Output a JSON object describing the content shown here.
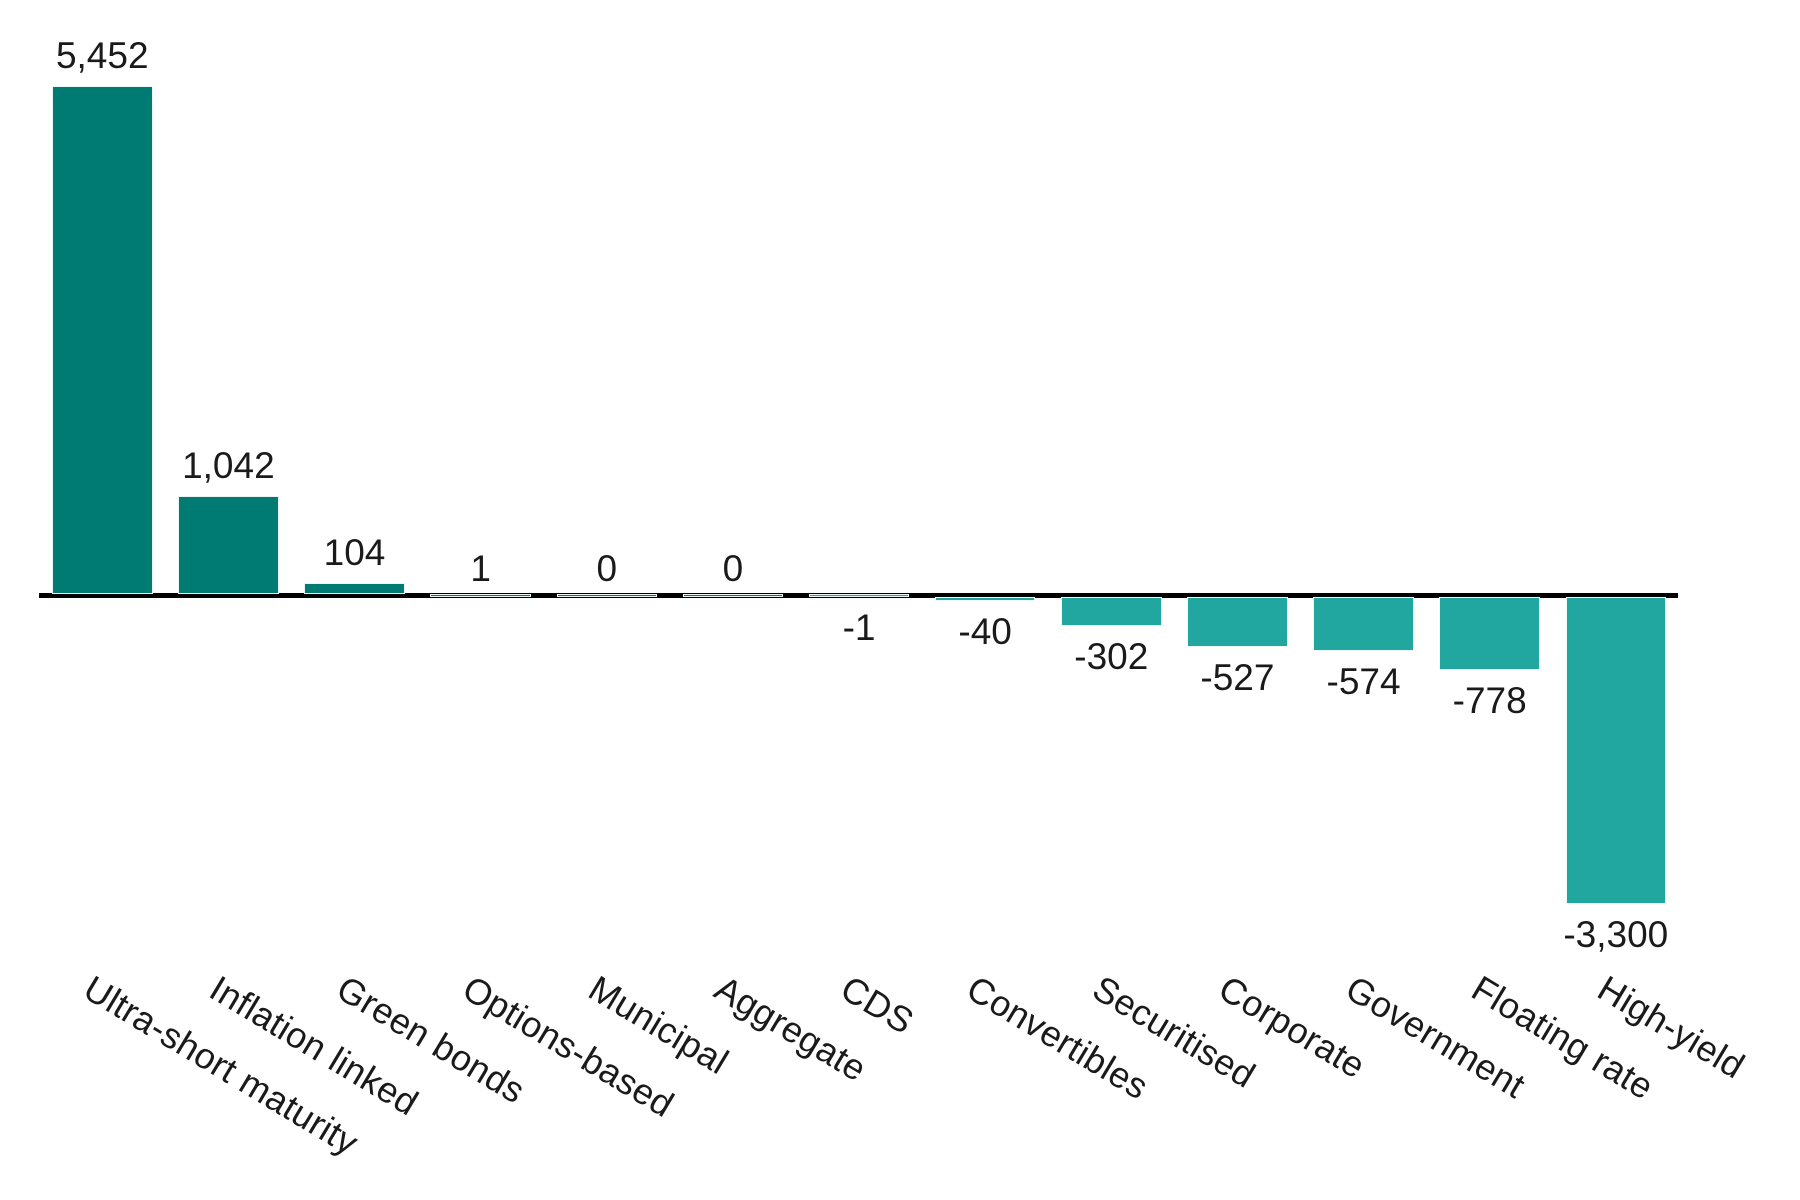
{
  "chart_data": {
    "type": "bar",
    "title": "",
    "xlabel": "",
    "ylabel": "",
    "categories": [
      "Ultra-short maturity",
      "Inflation linked",
      "Green bonds",
      "Options-based",
      "Municipal",
      "Aggregate",
      "CDS",
      "Convertibles",
      "Securitised",
      "Corporate",
      "Government",
      "Floating rate",
      "High-yield"
    ],
    "values": [
      5452,
      1042,
      104,
      1,
      0,
      0,
      -1,
      -40,
      -302,
      -527,
      -574,
      -778,
      -3300
    ],
    "value_labels": [
      "5,452",
      "1,042",
      "104",
      "1",
      "0",
      "0",
      "-1",
      "-40",
      "-302",
      "-527",
      "-574",
      "-778",
      "-3,300"
    ],
    "ylim": [
      -3300,
      5452
    ],
    "grid": false,
    "legend": null,
    "tick_label_rotation_deg": -31,
    "colors": {
      "positive_bar": "#007B74",
      "negative_bar": "#21A79F",
      "axis_line": "#000000",
      "text": "#1A1A1A",
      "background": "#FFFFFF"
    }
  }
}
